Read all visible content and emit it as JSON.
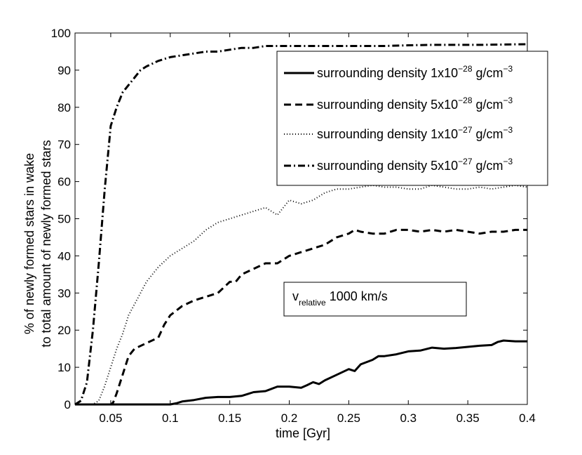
{
  "chart_data": {
    "type": "line",
    "xlabel": "time [Gyr]",
    "ylabel_lines": [
      "% of newly formed stars in wake",
      "to total amount of newly formed stars"
    ],
    "xlim": [
      0.02,
      0.4
    ],
    "ylim": [
      0,
      100
    ],
    "xticks": [
      0.05,
      0.1,
      0.15,
      0.2,
      0.25,
      0.3,
      0.35,
      0.4
    ],
    "xtick_labels": [
      "0.05",
      "0.1",
      "0.15",
      "0.2",
      "0.25",
      "0.3",
      "0.35",
      "0.4"
    ],
    "yticks": [
      0,
      10,
      20,
      30,
      40,
      50,
      60,
      70,
      80,
      90,
      100
    ],
    "ytick_labels": [
      "0",
      "10",
      "20",
      "30",
      "40",
      "50",
      "60",
      "70",
      "80",
      "90",
      "100"
    ],
    "grid": false,
    "legend_position": "top-right",
    "annotation": {
      "main": "v",
      "sub": "relative",
      "rest": " 1000 km/s"
    },
    "series": [
      {
        "name": "surrounding density 1x10-28 g/cm-3",
        "legend_base": "surrounding density 1x10",
        "legend_exp1": "−28",
        "legend_unit": " g/cm",
        "legend_exp2": "−3",
        "style": "solid",
        "width": 3,
        "x": [
          0.02,
          0.05,
          0.09,
          0.1,
          0.105,
          0.11,
          0.12,
          0.13,
          0.14,
          0.15,
          0.16,
          0.165,
          0.17,
          0.18,
          0.19,
          0.2,
          0.21,
          0.215,
          0.22,
          0.225,
          0.23,
          0.24,
          0.25,
          0.255,
          0.26,
          0.27,
          0.275,
          0.28,
          0.29,
          0.3,
          0.31,
          0.32,
          0.33,
          0.34,
          0.35,
          0.36,
          0.37,
          0.375,
          0.38,
          0.39,
          0.4
        ],
        "y": [
          0,
          0,
          0,
          0,
          0.3,
          0.8,
          1.2,
          1.8,
          2.0,
          2.0,
          2.3,
          2.8,
          3.3,
          3.6,
          4.8,
          4.8,
          4.5,
          5.2,
          6.0,
          5.5,
          6.5,
          8.0,
          9.5,
          9.0,
          10.8,
          12.0,
          13.0,
          13.0,
          13.5,
          14.3,
          14.5,
          15.3,
          15.0,
          15.2,
          15.5,
          15.8,
          16.0,
          16.8,
          17.2,
          17.0,
          17.0
        ]
      },
      {
        "name": "surrounding density 5x10-28 g/cm-3",
        "legend_base": "surrounding density 5x10",
        "legend_exp1": "−28",
        "legend_unit": " g/cm",
        "legend_exp2": "−3",
        "style": "dashed",
        "width": 3,
        "x": [
          0.02,
          0.05,
          0.052,
          0.055,
          0.06,
          0.065,
          0.07,
          0.08,
          0.09,
          0.095,
          0.1,
          0.11,
          0.12,
          0.13,
          0.14,
          0.15,
          0.155,
          0.16,
          0.17,
          0.18,
          0.19,
          0.2,
          0.21,
          0.22,
          0.23,
          0.24,
          0.25,
          0.255,
          0.26,
          0.27,
          0.28,
          0.29,
          0.3,
          0.31,
          0.32,
          0.33,
          0.34,
          0.35,
          0.36,
          0.37,
          0.38,
          0.39,
          0.4
        ],
        "y": [
          0,
          0,
          0.5,
          3,
          8,
          13,
          15,
          16.5,
          18,
          21.5,
          24,
          26.5,
          28,
          29,
          30,
          33,
          33,
          35,
          36.5,
          38,
          38,
          40,
          41,
          42,
          43,
          45,
          46,
          47,
          46.5,
          46,
          46,
          47,
          47,
          46.5,
          47,
          46.5,
          47,
          46.5,
          46,
          46.5,
          46.5,
          47,
          47
        ]
      },
      {
        "name": "surrounding density 1x10-27 g/cm-3",
        "legend_base": "surrounding density 1x10",
        "legend_exp1": "−27",
        "legend_unit": " g/cm",
        "legend_exp2": "−3",
        "style": "dotted",
        "width": 2,
        "x": [
          0.02,
          0.035,
          0.04,
          0.045,
          0.05,
          0.055,
          0.06,
          0.065,
          0.07,
          0.08,
          0.09,
          0.1,
          0.11,
          0.12,
          0.13,
          0.14,
          0.15,
          0.16,
          0.17,
          0.18,
          0.19,
          0.2,
          0.21,
          0.22,
          0.23,
          0.24,
          0.25,
          0.26,
          0.27,
          0.28,
          0.29,
          0.3,
          0.31,
          0.32,
          0.33,
          0.34,
          0.35,
          0.36,
          0.37,
          0.38,
          0.39,
          0.4
        ],
        "y": [
          0,
          0,
          1,
          5,
          10,
          15,
          19,
          24,
          27,
          33,
          37,
          40,
          42,
          44,
          47,
          49,
          50,
          51,
          52,
          53,
          51,
          55,
          54,
          55,
          57,
          58,
          58,
          58.5,
          59,
          58.5,
          58.5,
          58,
          58,
          59,
          58.5,
          58,
          58,
          58.5,
          58,
          58.5,
          59,
          58.5
        ]
      },
      {
        "name": "surrounding density 5x10-27 g/cm-3",
        "legend_base": "surrounding density 5x10",
        "legend_exp1": "−27",
        "legend_unit": " g/cm",
        "legend_exp2": "−3",
        "style": "dashdot",
        "width": 3,
        "x": [
          0.02,
          0.025,
          0.03,
          0.035,
          0.04,
          0.045,
          0.05,
          0.055,
          0.06,
          0.065,
          0.07,
          0.075,
          0.08,
          0.09,
          0.1,
          0.11,
          0.12,
          0.13,
          0.14,
          0.15,
          0.16,
          0.17,
          0.18,
          0.19,
          0.2,
          0.22,
          0.24,
          0.26,
          0.28,
          0.3,
          0.32,
          0.34,
          0.36,
          0.38,
          0.4
        ],
        "y": [
          0,
          1,
          6,
          20,
          38,
          58,
          75,
          80,
          84,
          86,
          88,
          90,
          91,
          92.5,
          93.5,
          94,
          94.5,
          95,
          95,
          95.5,
          96,
          96,
          96.5,
          96.5,
          96.5,
          96.5,
          96.5,
          96.5,
          96.5,
          96.7,
          96.8,
          96.8,
          96.8,
          96.9,
          97
        ]
      }
    ]
  }
}
